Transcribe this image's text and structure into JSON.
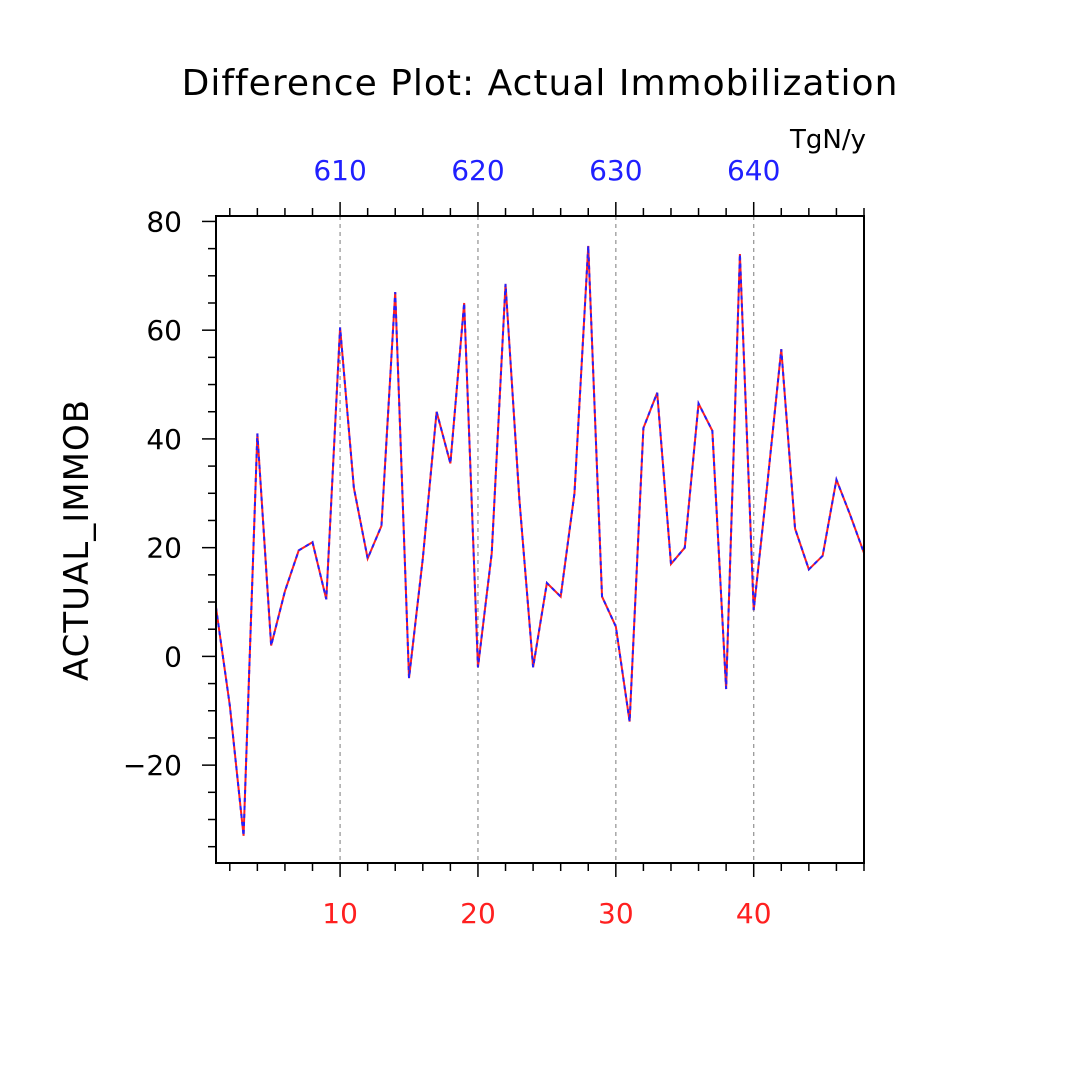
{
  "chart_data": {
    "type": "line",
    "title": "Difference Plot: Actual Immobilization",
    "ylabel": "ACTUAL_IMMOB",
    "units": "TgN/y",
    "xlim": [
      1,
      48
    ],
    "ylim": [
      -38,
      81
    ],
    "x_ticks_bottom": [
      10,
      20,
      30,
      40
    ],
    "x_tick_labels_bottom": [
      "10",
      "20",
      "30",
      "40"
    ],
    "x_ticks_top_offset": 600,
    "x_tick_labels_top": [
      "610",
      "620",
      "630",
      "640"
    ],
    "y_ticks": [
      -20,
      0,
      20,
      40,
      60,
      80
    ],
    "y_tick_labels": [
      "−20",
      "0",
      "20",
      "40",
      "60",
      "80"
    ],
    "grid": "vertical-dashed",
    "series": [
      {
        "name": "series-red",
        "color": "#ff2020",
        "style": "solid",
        "x": [
          1,
          2,
          3,
          4,
          5,
          6,
          7,
          8,
          9,
          10,
          11,
          12,
          13,
          14,
          15,
          16,
          17,
          18,
          19,
          20,
          21,
          22,
          23,
          24,
          25,
          26,
          27,
          28,
          29,
          30,
          31,
          32,
          33,
          34,
          35,
          36,
          37,
          38,
          39,
          40,
          41,
          42,
          43,
          44,
          45,
          46,
          47,
          48
        ],
        "values": [
          9,
          -9,
          -33,
          41,
          2,
          12,
          19.5,
          21,
          10.5,
          60.5,
          31,
          18,
          24,
          67,
          -4,
          18,
          45,
          35.5,
          65,
          -2,
          19,
          68.5,
          29,
          -2,
          13.5,
          11,
          30,
          75.5,
          11,
          5.5,
          -12,
          42,
          48.5,
          17,
          20,
          46.5,
          41.5,
          -6,
          74,
          8.5,
          32,
          56.5,
          23.5,
          16,
          18.5,
          32.5,
          26,
          19
        ]
      },
      {
        "name": "series-blue",
        "color": "#2020ff",
        "style": "dashed",
        "x": [
          1,
          2,
          3,
          4,
          5,
          6,
          7,
          8,
          9,
          10,
          11,
          12,
          13,
          14,
          15,
          16,
          17,
          18,
          19,
          20,
          21,
          22,
          23,
          24,
          25,
          26,
          27,
          28,
          29,
          30,
          31,
          32,
          33,
          34,
          35,
          36,
          37,
          38,
          39,
          40,
          41,
          42,
          43,
          44,
          45,
          46,
          47,
          48
        ],
        "values": [
          9,
          -9,
          -33,
          41,
          2,
          12,
          19.5,
          21,
          10.5,
          60.5,
          31,
          18,
          24,
          67,
          -4,
          18,
          45,
          35.5,
          65,
          -2,
          19,
          68.5,
          29,
          -2,
          13.5,
          11,
          30,
          75.5,
          11,
          5.5,
          -12,
          42,
          48.5,
          17,
          20,
          46.5,
          41.5,
          -6,
          74,
          8.5,
          32,
          56.5,
          23.5,
          16,
          18.5,
          32.5,
          26,
          19
        ]
      }
    ]
  }
}
